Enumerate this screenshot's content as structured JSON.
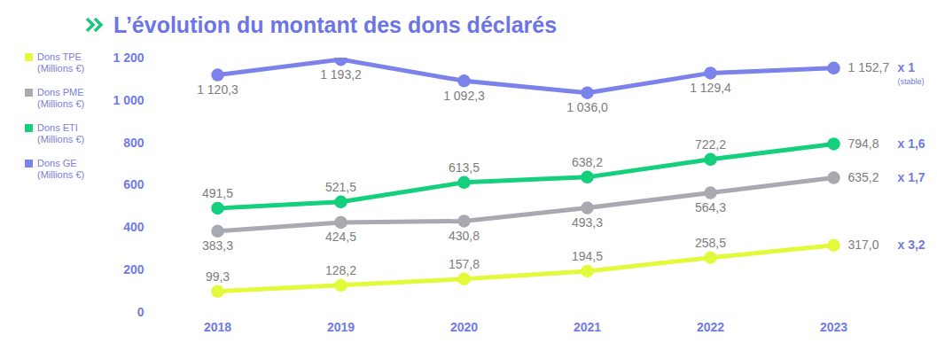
{
  "chart_data": {
    "type": "line",
    "title": "L’évolution du montant des dons déclarés",
    "categories": [
      "2018",
      "2019",
      "2020",
      "2021",
      "2022",
      "2023"
    ],
    "series": [
      {
        "name": "Dons TPE (Millions €)",
        "color": "#e3fa3c",
        "values": [
          99.3,
          128.2,
          157.8,
          194.5,
          258.5,
          317.0
        ],
        "value_labels": [
          "99,3",
          "128,2",
          "157,8",
          "194,5",
          "258,5",
          "317,0"
        ]
      },
      {
        "name": "Dons PME (Millions €)",
        "color": "#a9a9b1",
        "values": [
          383.3,
          424.5,
          430.8,
          493.3,
          564.3,
          635.2
        ],
        "value_labels": [
          "383,3",
          "424,5",
          "430,8",
          "493,3",
          "564,3",
          "635,2"
        ]
      },
      {
        "name": "Dons ETI (Millions €)",
        "color": "#14cf7b",
        "values": [
          491.5,
          521.5,
          613.5,
          638.2,
          722.2,
          794.8
        ],
        "value_labels": [
          "491,5",
          "521,5",
          "613,5",
          "638,2",
          "722,2",
          "794,8"
        ]
      },
      {
        "name": "Dons GE (Millions €)",
        "color": "#7b83eb",
        "values": [
          1120.3,
          1193.2,
          1092.3,
          1036.0,
          1129.4,
          1152.7
        ],
        "value_labels": [
          "1 120,3",
          "1 193,2",
          "1 092,3",
          "1 036,0",
          "1 129,4",
          "1 152,7"
        ]
      }
    ],
    "annotations": [
      {
        "series": "Dons TPE (Millions €)",
        "text": "x 3,2"
      },
      {
        "series": "Dons PME (Millions €)",
        "text": "x 1,7"
      },
      {
        "series": "Dons ETI (Millions €)",
        "text": "x 1,6"
      },
      {
        "series": "Dons GE (Millions €)",
        "text": "x 1",
        "note": "(stable)"
      }
    ],
    "ylim": [
      0,
      1200
    ],
    "yticks": [
      0,
      200,
      400,
      600,
      800,
      {
        "value": 1000,
        "label": "1 000"
      },
      {
        "value": 1200,
        "label": "1 200"
      }
    ],
    "grid": false,
    "legend": "left",
    "data_labels": true,
    "marker": "circle"
  }
}
